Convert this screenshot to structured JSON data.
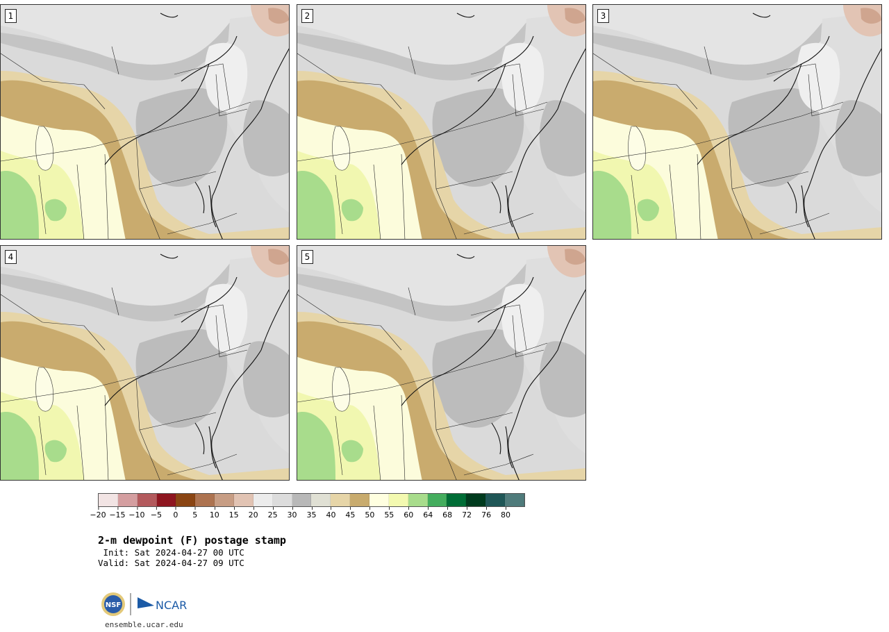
{
  "panels": [
    {
      "label": "1"
    },
    {
      "label": "2"
    },
    {
      "label": "3"
    },
    {
      "label": "4"
    },
    {
      "label": "5"
    }
  ],
  "colorbar": {
    "colors": [
      "#f2e4e4",
      "#d49ea0",
      "#b35a5d",
      "#8e1620",
      "#8a4513",
      "#ad7350",
      "#c79d84",
      "#e1c3b3",
      "#ececec",
      "#dcdcdc",
      "#b8b8b8",
      "#e0e0d4",
      "#e6d5a8",
      "#c8ab6e",
      "#ffffe0",
      "#f3f9b0",
      "#a8dc8c",
      "#44ad5e",
      "#006d36",
      "#003b1e",
      "#1f5656",
      "#4f7b7b"
    ],
    "tick_labels": [
      "−20",
      "−15",
      "−10",
      "−5",
      "0",
      "5",
      "10",
      "15",
      "20",
      "25",
      "30",
      "35",
      "40",
      "45",
      "50",
      "55",
      "60",
      "64",
      "68",
      "72",
      "76",
      "80"
    ]
  },
  "title": "2-m dewpoint (F) postage stamp",
  "init": " Init: Sat 2024-04-27 00 UTC",
  "valid": "Valid: Sat 2024-04-27 09 UTC",
  "logos": {
    "nsf": "NSF",
    "ncar": "NCAR"
  },
  "site": "ensemble.ucar.edu"
}
